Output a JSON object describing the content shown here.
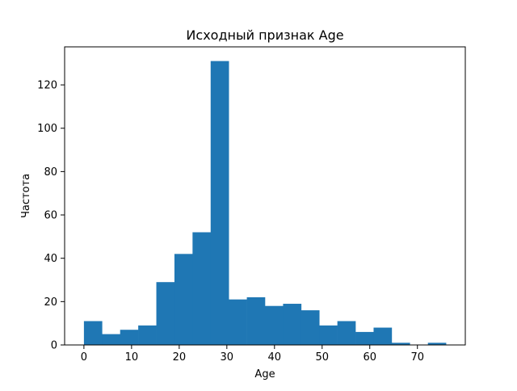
{
  "chart_data": {
    "type": "bar",
    "title": "Исходный признак Age",
    "xlabel": "Age",
    "ylabel": "Частота",
    "xlim": [
      -4.05,
      80.05
    ],
    "ylim": [
      0,
      137.55
    ],
    "x_ticks": [
      0,
      10,
      20,
      30,
      40,
      50,
      60,
      70
    ],
    "y_ticks": [
      0,
      20,
      40,
      60,
      80,
      100,
      120
    ],
    "bin_edges": [
      0.0,
      3.8,
      7.6,
      11.4,
      15.2,
      19.0,
      22.8,
      26.6,
      30.4,
      34.2,
      38.0,
      41.8,
      45.6,
      49.4,
      53.2,
      57.0,
      60.8,
      64.6,
      68.4,
      72.2,
      76.0
    ],
    "values": [
      11,
      5,
      7,
      9,
      29,
      42,
      52,
      131,
      21,
      22,
      18,
      19,
      16,
      9,
      11,
      6,
      8,
      1,
      0,
      1
    ],
    "bar_color": "#1f77b4",
    "grid": false,
    "legend": "none"
  }
}
